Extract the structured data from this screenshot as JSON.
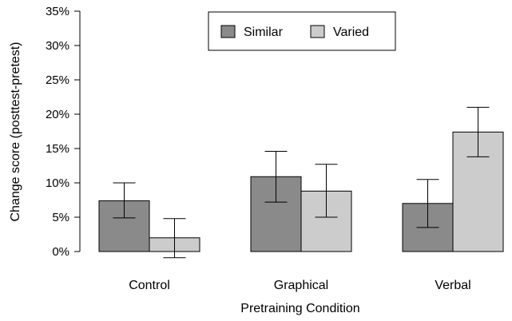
{
  "chart_data": {
    "type": "bar",
    "title": "",
    "xlabel": "Pretraining Condition",
    "ylabel": "Change score (posttest-pretest)",
    "categories": [
      "Control",
      "Graphical",
      "Verbal"
    ],
    "series": [
      {
        "name": "Similar",
        "color": "#8a8a8a",
        "values": [
          7.4,
          10.9,
          7.0
        ],
        "error_low": [
          4.9,
          7.2,
          3.5
        ],
        "error_high": [
          10.0,
          14.6,
          10.5
        ]
      },
      {
        "name": "Varied",
        "color": "#cccccc",
        "values": [
          2.0,
          8.8,
          17.4
        ],
        "error_low": [
          -0.9,
          5.0,
          13.8
        ],
        "error_high": [
          4.8,
          12.7,
          21.0
        ]
      }
    ],
    "ylim": [
      0,
      35
    ],
    "y_ticks": [
      0,
      5,
      10,
      15,
      20,
      25,
      30,
      35
    ],
    "y_tick_labels": [
      "0%",
      "5%",
      "10%",
      "15%",
      "20%",
      "25%",
      "30%",
      "35%"
    ],
    "legend_position": "top-center",
    "grid": false
  }
}
